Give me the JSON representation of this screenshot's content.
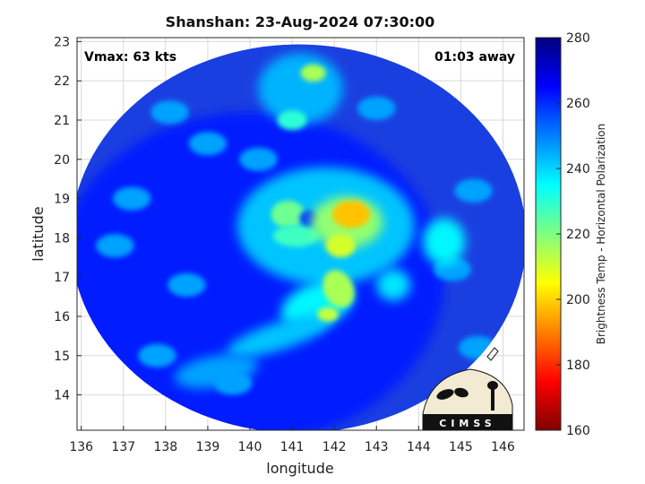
{
  "chart_data": {
    "type": "heatmap",
    "title": "Shanshan: 23-Aug-2024 07:30:00",
    "xlabel": "longitude",
    "ylabel": "latitude",
    "xlim": [
      135.9,
      146.5
    ],
    "ylim": [
      13.1,
      23.1
    ],
    "xticks": [
      "136",
      "137",
      "138",
      "139",
      "140",
      "141",
      "142",
      "143",
      "144",
      "145",
      "146"
    ],
    "yticks": [
      "14",
      "15",
      "16",
      "17",
      "18",
      "19",
      "20",
      "21",
      "22",
      "23"
    ],
    "grid": true,
    "colorbar": {
      "label": "Brightness Temp - Horizontal Polarization",
      "range": [
        160,
        280
      ],
      "ticks": [
        "160",
        "180",
        "200",
        "220",
        "240",
        "260",
        "280"
      ],
      "colormap": "jet"
    },
    "annotations": {
      "vmax": "Vmax: 63 kts",
      "time_offset": "01:03 away"
    },
    "swath": {
      "center_lon": 141.15,
      "center_lat": 17.98,
      "radius_lon": 5.4,
      "radius_lat": 4.95
    },
    "storm_center": {
      "lon": 141.3,
      "lat": 18.1
    },
    "features": [
      {
        "name": "eyewall-core",
        "lon": 142.4,
        "lat": 18.6,
        "min_tb": 198
      },
      {
        "name": "spiral-band-south",
        "lon": 142.2,
        "lat": 16.6,
        "min_tb": 205
      },
      {
        "name": "outer-band-north",
        "lon": 141.5,
        "lat": 22.2,
        "min_tb": 215
      }
    ],
    "colors": {
      "background_tb": "#1a3fe0",
      "deep_tb": "#c80000"
    }
  },
  "logo": {
    "text": "CIMSS"
  }
}
